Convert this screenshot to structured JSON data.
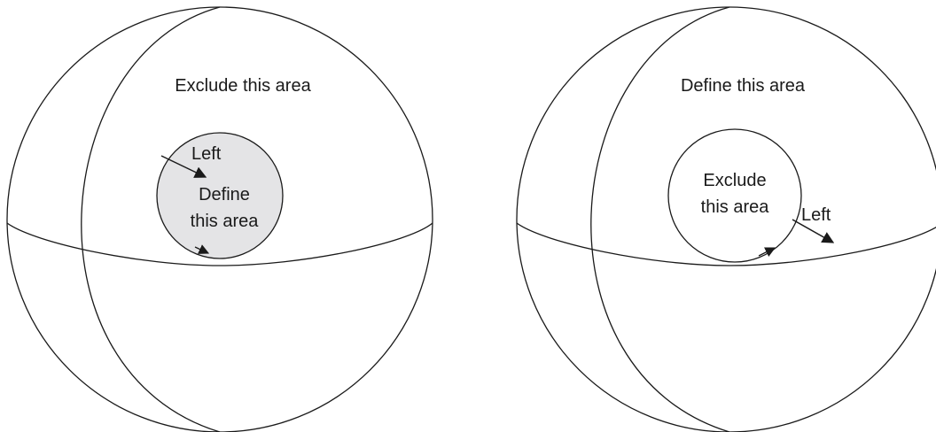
{
  "colors": {
    "shade": "#e4e4e6",
    "line": "#1a1a1a",
    "background": "#ffffff"
  },
  "left_sphere": {
    "outer_label": "Exclude this area",
    "arrow_label": "Left",
    "inner_label_line1": "Define",
    "inner_label_line2": "this area"
  },
  "right_sphere": {
    "outer_label": "Define this area",
    "inner_label_line1": "Exclude",
    "inner_label_line2": "this area",
    "arrow_label": "Left"
  }
}
